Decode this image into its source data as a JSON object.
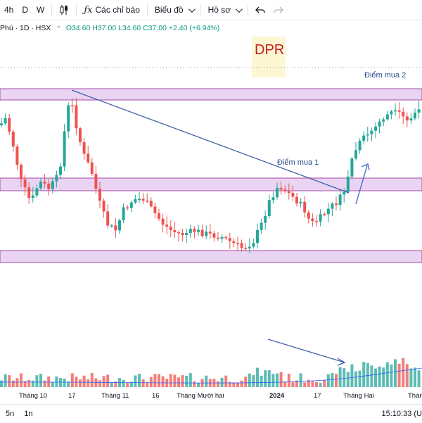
{
  "toolbar": {
    "interval_4h": "4h",
    "interval_d": "D",
    "interval_w": "W",
    "indicators_label": "Các chỉ báo",
    "chart_type_label": "Biểu đồ",
    "profile_label": "Hồ sơ"
  },
  "legend": {
    "symbol": "Phú · 1D · HSX",
    "ohlc": "O34.60 H37.00 L34.60 C37.00 +2.40 (+6.94%)"
  },
  "ticker_badge": "DPR",
  "annotations": {
    "buy1": "Điểm mua 1",
    "buy2": "Điểm mua 2"
  },
  "x_axis": {
    "labels": [
      "Tháng 10",
      "17",
      "Tháng 11",
      "16",
      "Tháng Mười hai",
      "2024",
      "17",
      "Tháng Hai",
      "Thán"
    ]
  },
  "footer": {
    "range_5n": "5n",
    "range_1n": "1n",
    "time": "15:10:33 (U"
  },
  "colors": {
    "up": "#26a69a",
    "down": "#ef5350",
    "zone_fill": "#e9d4f3",
    "zone_border": "#a64aa6",
    "trendline": "#3f5fa8",
    "arrow": "#4a6fd0"
  }
}
